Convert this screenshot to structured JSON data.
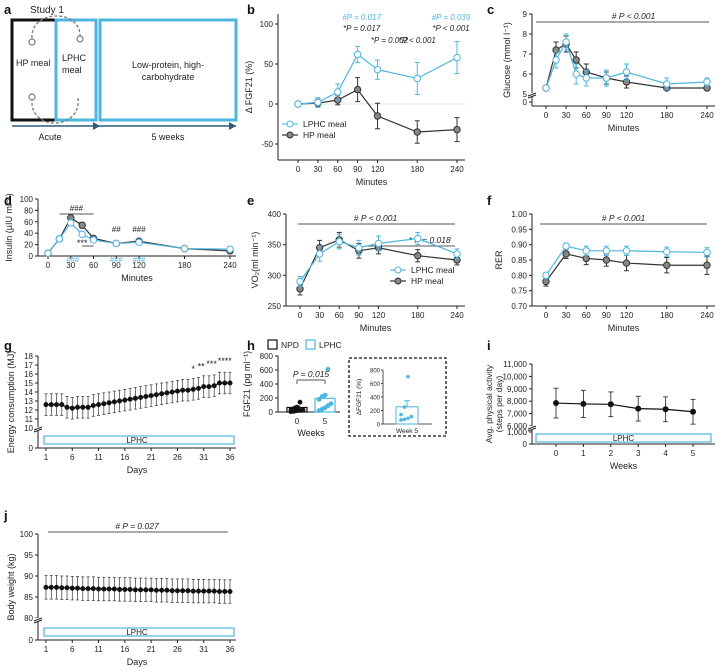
{
  "colors": {
    "lphc": "#4db6de",
    "hp": "#333333",
    "black": "#111111",
    "grey": "#888888"
  },
  "panel_labels": [
    "a",
    "b",
    "c",
    "d",
    "e",
    "f",
    "g",
    "h",
    "i",
    "j"
  ],
  "a": {
    "title": "Study 1",
    "hp_meal": "HP meal",
    "lphc_meal_l1": "LPHC",
    "lphc_meal_l2": "meal",
    "diet_l1": "Low-protein, high-",
    "diet_l2": "carbohydrate",
    "acute": "Acute",
    "weeks": "5 weeks"
  },
  "legend": {
    "lphc_meal": "LPHC meal",
    "hp_meal": "HP meal",
    "npd": "NPD",
    "lphc": "LPHC"
  },
  "chart_data": [
    {
      "id": "b",
      "type": "line",
      "title": "",
      "ylabel": "Δ FGF21 (%)",
      "xlabel": "Minutes",
      "x": [
        0,
        30,
        60,
        90,
        120,
        180,
        240
      ],
      "ylim": [
        -60,
        100
      ],
      "yticks": [
        -50,
        0,
        50,
        100
      ],
      "xlim": [
        0,
        240
      ],
      "xticks": [
        0,
        30,
        60,
        90,
        120,
        180,
        240
      ],
      "series": [
        {
          "name": "LPHC meal",
          "values": [
            0,
            2,
            15,
            62,
            43,
            32,
            58
          ],
          "err": [
            0,
            6,
            10,
            10,
            12,
            20,
            20
          ]
        },
        {
          "name": "HP meal",
          "values": [
            0,
            1,
            5,
            18,
            -15,
            -35,
            -32
          ],
          "err": [
            0,
            5,
            6,
            15,
            16,
            14,
            15
          ]
        }
      ],
      "annotations": {
        "blue_90": "#P = 0.017",
        "black_90": "*P = 0.017",
        "black_120": "*P = 0.002",
        "black_180": "*P < 0.001",
        "blue_240": "#P = 0.039",
        "black_240": "*P < 0.001"
      }
    },
    {
      "id": "c",
      "type": "line",
      "ylabel": "Glucose (mmol l⁻¹)",
      "xlabel": "Minutes",
      "x": [
        0,
        15,
        30,
        45,
        60,
        90,
        120,
        180,
        240
      ],
      "ylim": [
        0,
        9
      ],
      "yticks": [
        0,
        5,
        6,
        7,
        8,
        9
      ],
      "xticks": [
        0,
        30,
        60,
        90,
        120,
        180,
        240
      ],
      "series": [
        {
          "name": "LPHC meal",
          "values": [
            5.3,
            6.7,
            7.6,
            6.0,
            5.8,
            5.8,
            6.1,
            5.5,
            5.6
          ],
          "err": [
            0.1,
            0.4,
            0.4,
            0.5,
            0.4,
            0.4,
            0.4,
            0.3,
            0.2
          ]
        },
        {
          "name": "HP meal",
          "values": [
            5.3,
            7.2,
            7.5,
            6.7,
            6.1,
            5.8,
            5.6,
            5.3,
            5.3
          ],
          "err": [
            0.1,
            0.4,
            0.4,
            0.4,
            0.4,
            0.3,
            0.3,
            0.1,
            0.1
          ]
        }
      ],
      "annotations": {
        "sig": "# P < 0.001"
      }
    },
    {
      "id": "d",
      "type": "line",
      "ylabel": "Insulin (µIU ml⁻¹)",
      "xlabel": "Minutes",
      "x": [
        0,
        15,
        30,
        45,
        60,
        90,
        120,
        180,
        240
      ],
      "ylim": [
        0,
        100
      ],
      "yticks": [
        0,
        20,
        40,
        60,
        80,
        100
      ],
      "xticks": [
        0,
        30,
        60,
        90,
        120,
        180,
        240
      ],
      "series": [
        {
          "name": "LPHC meal",
          "values": [
            5,
            30,
            58,
            38,
            28,
            22,
            24,
            13,
            12
          ],
          "err": [
            1,
            4,
            5,
            4,
            3,
            3,
            3,
            2,
            2
          ]
        },
        {
          "name": "HP meal",
          "values": [
            5,
            30,
            67,
            54,
            31,
            22,
            26,
            13,
            9
          ],
          "err": [
            1,
            4,
            6,
            5,
            3,
            3,
            3,
            2,
            2
          ]
        }
      ],
      "annotations": {
        "hash_top": "###",
        "stars": "***",
        "hash_b1": "###",
        "hash_b2": "###",
        "hash_b3": "###",
        "hash_90": "##",
        "hash_120": "###"
      }
    },
    {
      "id": "e",
      "type": "line",
      "ylabel": "VO₂(ml min⁻¹)",
      "xlabel": "Minutes",
      "x": [
        0,
        30,
        60,
        90,
        120,
        180,
        240
      ],
      "ylim": [
        250,
        400
      ],
      "yticks": [
        250,
        300,
        350,
        400
      ],
      "xticks": [
        0,
        30,
        60,
        90,
        120,
        180,
        240
      ],
      "series": [
        {
          "name": "LPHC meal",
          "values": [
            290,
            335,
            355,
            345,
            352,
            360,
            335
          ],
          "err": [
            8,
            12,
            12,
            12,
            12,
            10,
            8
          ]
        },
        {
          "name": "HP meal",
          "values": [
            278,
            345,
            358,
            340,
            345,
            332,
            325
          ],
          "err": [
            10,
            12,
            12,
            12,
            10,
            10,
            8
          ]
        }
      ],
      "annotations": {
        "sig1": "# P < 0.001",
        "sig2": "* P = 0.018"
      }
    },
    {
      "id": "f",
      "type": "line",
      "ylabel": "RER",
      "xlabel": "Minutes",
      "x": [
        0,
        30,
        60,
        90,
        120,
        180,
        240
      ],
      "ylim": [
        0.7,
        1.0
      ],
      "yticks": [
        0.7,
        0.75,
        0.8,
        0.85,
        0.9,
        0.95,
        1.0
      ],
      "xticks": [
        0,
        30,
        60,
        90,
        120,
        180,
        240
      ],
      "series": [
        {
          "name": "LPHC meal",
          "values": [
            0.8,
            0.895,
            0.88,
            0.88,
            0.88,
            0.877,
            0.875
          ],
          "err": [
            0.01,
            0.01,
            0.015,
            0.015,
            0.015,
            0.015,
            0.015
          ]
        },
        {
          "name": "HP meal",
          "values": [
            0.78,
            0.87,
            0.855,
            0.85,
            0.84,
            0.833,
            0.833
          ],
          "err": [
            0.015,
            0.015,
            0.02,
            0.02,
            0.025,
            0.025,
            0.03
          ]
        }
      ],
      "annotations": {
        "sig": "# P < 0.001"
      }
    },
    {
      "id": "g",
      "type": "line",
      "ylabel": "Energy consumption (MJ)",
      "xlabel": "Days",
      "ylim": [
        0,
        18
      ],
      "yticks": [
        0,
        10,
        11,
        12,
        13,
        14,
        15,
        16,
        17,
        18
      ],
      "xticks": [
        1,
        6,
        11,
        16,
        21,
        26,
        31,
        36
      ],
      "values": [
        12.6,
        12.6,
        12.6,
        12.6,
        12.3,
        12.2,
        12.3,
        12.3,
        12.3,
        12.5,
        12.6,
        12.7,
        12.8,
        12.9,
        13.0,
        13.1,
        13.2,
        13.3,
        13.4,
        13.5,
        13.6,
        13.7,
        13.8,
        13.9,
        14.0,
        14.1,
        14.2,
        14.2,
        14.3,
        14.4,
        14.6,
        14.6,
        14.7,
        15.0,
        15.0,
        15.0
      ],
      "err": 1.2,
      "bar_label": "LPHC",
      "annotations": {
        "s1": "*",
        "s2": "**",
        "s3": "***",
        "s4": "****"
      }
    },
    {
      "id": "h",
      "type": "scatter",
      "ylabel": "FGF21 (pg ml⁻¹)",
      "xlabel": "Weeks",
      "categories": [
        "0",
        "5"
      ],
      "means": [
        65,
        195
      ],
      "sems": [
        20,
        50
      ],
      "points": [
        [
          5,
          10,
          18,
          22,
          30,
          35,
          50,
          70,
          140
        ],
        [
          20,
          40,
          60,
          90,
          120,
          180,
          220,
          240,
          610
        ]
      ],
      "ylim": [
        0,
        800
      ],
      "yticks": [
        0,
        200,
        400,
        600,
        800
      ],
      "annotations": {
        "p": "P = 0.015"
      },
      "inset": {
        "ylabel": "ΔFGF21 (%)",
        "category": "Week 5",
        "mean": 255,
        "sem": 90,
        "points": [
          60,
          70,
          85,
          110,
          140,
          250,
          700
        ],
        "ylim": [
          0,
          800
        ],
        "yticks": [
          0,
          200,
          400,
          600,
          800
        ]
      }
    },
    {
      "id": "i",
      "type": "line",
      "ylabel_l1": "Avg. physical activity",
      "ylabel_l2": "(steps per day)",
      "xlabel": "Weeks",
      "x": [
        0,
        1,
        2,
        3,
        4,
        5
      ],
      "values": [
        7850,
        7780,
        7750,
        7400,
        7350,
        7150
      ],
      "err": [
        1200,
        1100,
        1000,
        1000,
        1000,
        1000
      ],
      "ylim": [
        0,
        11000
      ],
      "yticks": [
        "0",
        "1,000",
        "6,000",
        "7,000",
        "8,000",
        "9,000",
        "10,000",
        "11,000"
      ],
      "bar_label": "LPHC"
    },
    {
      "id": "j",
      "type": "line",
      "ylabel": "Body weight (kg)",
      "xlabel": "Days",
      "ylim": [
        0,
        100
      ],
      "yticks": [
        0,
        80,
        85,
        90,
        95,
        100
      ],
      "xticks": [
        1,
        6,
        11,
        16,
        21,
        26,
        31,
        36
      ],
      "values": [
        87.3,
        87.3,
        87.3,
        87.2,
        87.2,
        87.1,
        87.1,
        87.0,
        87.0,
        87.0,
        86.9,
        86.9,
        86.9,
        86.9,
        86.8,
        86.8,
        86.8,
        86.7,
        86.7,
        86.7,
        86.7,
        86.6,
        86.6,
        86.6,
        86.5,
        86.5,
        86.5,
        86.5,
        86.4,
        86.4,
        86.4,
        86.4,
        86.4,
        86.3,
        86.3,
        86.3
      ],
      "err": 2.8,
      "bar_label": "LPHC",
      "annotations": {
        "sig": "# P = 0.027"
      }
    }
  ]
}
